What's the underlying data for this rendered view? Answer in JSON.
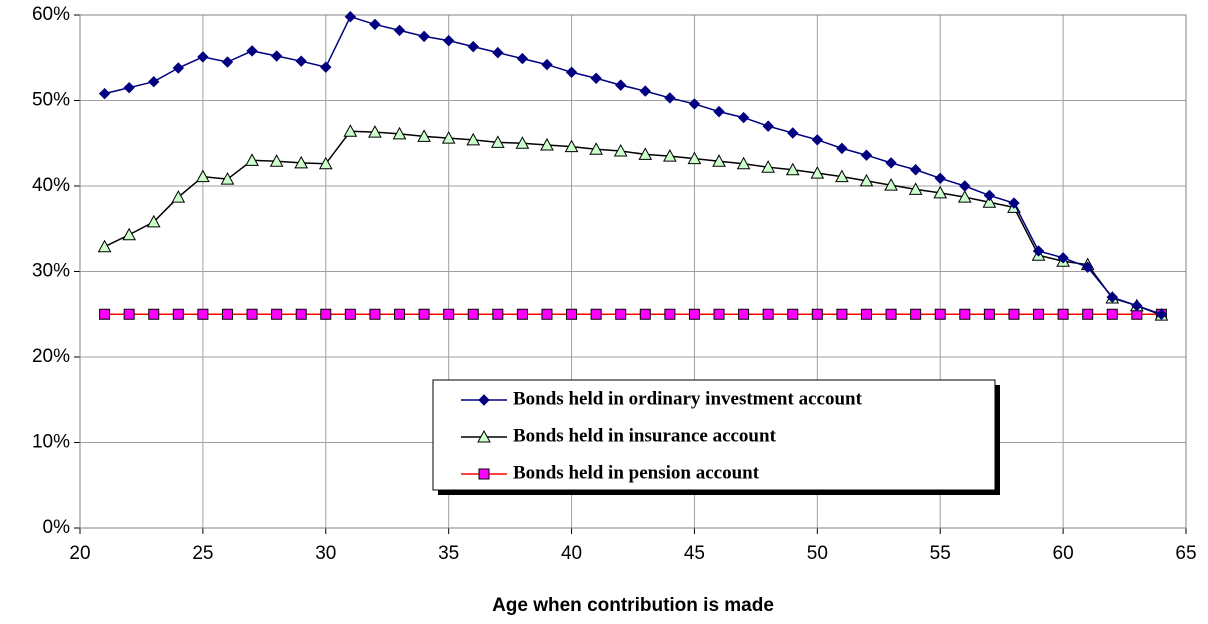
{
  "chart_data": {
    "type": "line",
    "x_label": "Age when contribution is made",
    "x": [
      21,
      22,
      23,
      24,
      25,
      26,
      27,
      28,
      29,
      30,
      31,
      32,
      33,
      34,
      35,
      36,
      37,
      38,
      39,
      40,
      41,
      42,
      43,
      44,
      45,
      46,
      47,
      48,
      49,
      50,
      51,
      52,
      53,
      54,
      55,
      56,
      57,
      58,
      59,
      60,
      61,
      62,
      63,
      64
    ],
    "series": [
      {
        "name": "Bonds held in ordinary investment account",
        "color": "#000080",
        "marker": "diamond",
        "marker_color": "#000080",
        "values": [
          50.8,
          51.5,
          52.2,
          53.8,
          55.1,
          54.5,
          55.8,
          55.2,
          54.6,
          53.9,
          59.8,
          58.9,
          58.2,
          57.5,
          57.0,
          56.3,
          55.6,
          54.9,
          54.2,
          53.3,
          52.6,
          51.8,
          51.1,
          50.3,
          49.6,
          48.7,
          48.0,
          47.0,
          46.2,
          45.4,
          44.4,
          43.6,
          42.7,
          41.9,
          40.9,
          40.0,
          38.9,
          38.0,
          32.4,
          31.6,
          30.5,
          27.0,
          26.0,
          25.0
        ]
      },
      {
        "name": "Bonds held in insurance account",
        "color": "#000000",
        "marker": "triangle",
        "marker_color": "#ccffcc",
        "values": [
          32.9,
          34.3,
          35.8,
          38.7,
          41.1,
          40.8,
          43.0,
          42.9,
          42.7,
          42.6,
          46.4,
          46.3,
          46.1,
          45.8,
          45.6,
          45.4,
          45.1,
          45.0,
          44.8,
          44.6,
          44.3,
          44.1,
          43.7,
          43.5,
          43.2,
          42.9,
          42.6,
          42.2,
          41.9,
          41.5,
          41.1,
          40.6,
          40.1,
          39.6,
          39.2,
          38.7,
          38.1,
          37.5,
          31.9,
          31.2,
          30.8,
          26.9,
          26.0,
          24.9
        ]
      },
      {
        "name": "Bonds held in pension account",
        "color": "#ff0000",
        "marker": "square",
        "marker_color": "#ff00ff",
        "values": [
          25,
          25,
          25,
          25,
          25,
          25,
          25,
          25,
          25,
          25,
          25,
          25,
          25,
          25,
          25,
          25,
          25,
          25,
          25,
          25,
          25,
          25,
          25,
          25,
          25,
          25,
          25,
          25,
          25,
          25,
          25,
          25,
          25,
          25,
          25,
          25,
          25,
          25,
          25,
          25,
          25,
          25,
          25,
          25
        ]
      }
    ],
    "xlim": [
      20,
      65
    ],
    "xticks": [
      20,
      25,
      30,
      35,
      40,
      45,
      50,
      55,
      60,
      65
    ],
    "ylim": [
      0,
      60
    ],
    "yticks": [
      {
        "value": 0,
        "label": "0%"
      },
      {
        "value": 10,
        "label": "10%"
      },
      {
        "value": 20,
        "label": "20%"
      },
      {
        "value": 30,
        "label": "30%"
      },
      {
        "value": 40,
        "label": "40%"
      },
      {
        "value": 50,
        "label": "50%"
      },
      {
        "value": 60,
        "label": "60%"
      }
    ],
    "grid": true,
    "legend": "lower center"
  }
}
